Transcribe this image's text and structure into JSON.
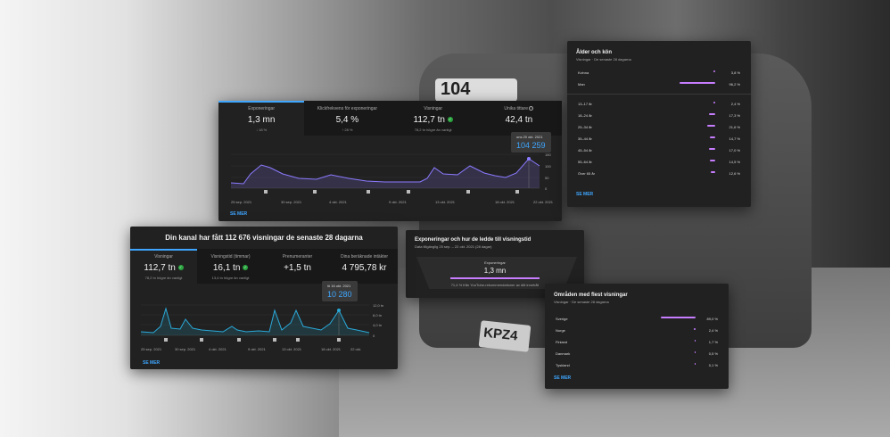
{
  "top_panel": {
    "metrics": [
      {
        "label": "Exponeringar",
        "value": "1,3 mn",
        "sub": "↓ 18 %"
      },
      {
        "label": "Klickfrekvens för exponeringar",
        "value": "5,4 %",
        "sub": "↑ 28 %"
      },
      {
        "label": "Visningar",
        "value": "112,7 tn",
        "sub": "78,2 tn högre än vanligt"
      },
      {
        "label": "Unika tittare",
        "value": "42,4 tn",
        "sub": ""
      }
    ],
    "tooltip": {
      "date": "ons 20 okt. 2021",
      "value": "104 259"
    },
    "x_labels": [
      "25 sep. 2021",
      "30 sep. 2021",
      "4 okt. 2021",
      "9 okt. 2021",
      "13 okt. 2021",
      "18 okt. 2021",
      "22 okt. 2021"
    ],
    "y_labels": [
      "150",
      "100",
      "50",
      "0"
    ],
    "see_more": "SE MER"
  },
  "main_panel": {
    "title": "Din kanal har fått 112 676 visningar de senaste 28 dagarna",
    "metrics": [
      {
        "label": "Visningar",
        "value": "112,7 tn",
        "sub": "78,2 tn högre än vanligt"
      },
      {
        "label": "Visningstid (timmar)",
        "value": "16,1 tn",
        "sub": "13,4 tn högre än vanligt"
      },
      {
        "label": "Prenumeranter",
        "value": "+1,5 tn",
        "sub": ""
      },
      {
        "label": "Dina beräknade intäkter",
        "value": "4 795,78 kr",
        "sub": ""
      }
    ],
    "tooltip": {
      "date": "lö 16 okt. 2021",
      "value": "10 280"
    },
    "x_labels": [
      "25 sep. 2021",
      "30 sep. 2021",
      "4 okt. 2021",
      "9 okt. 2021",
      "13 okt. 2021",
      "18 okt. 2021",
      "22 okt."
    ],
    "y_labels": [
      "12,0 tn",
      "8,0 tn",
      "4,0 tn",
      "0"
    ],
    "see_more": "SE MER"
  },
  "funnel_panel": {
    "title": "Exponeringar och hur de ledde till visningstid",
    "subtitle": "Data tillgänglig 25 sep. – 22 okt. 2021 (28 dagar)",
    "metric_label": "Exponeringar",
    "metric_value": "1,3 mn",
    "note": "71,4 % från YouTube-rekommendationer av ditt innehåll"
  },
  "age_panel": {
    "title": "Ålder och kön",
    "subtitle": "Visningar · De senaste 28 dagarna",
    "gender": [
      {
        "name": "Kvinna",
        "pct": "3,8 %",
        "v": 3.8
      },
      {
        "name": "Man",
        "pct": "96,2 %",
        "v": 96.2
      }
    ],
    "ages": [
      {
        "name": "13–17 år",
        "pct": "2,4 %",
        "v": 2.4
      },
      {
        "name": "18–24 år",
        "pct": "17,3 %",
        "v": 17.3
      },
      {
        "name": "25–34 år",
        "pct": "21,6 %",
        "v": 21.6
      },
      {
        "name": "35–44 år",
        "pct": "14,7 %",
        "v": 14.7
      },
      {
        "name": "45–54 år",
        "pct": "17,0 %",
        "v": 17.0
      },
      {
        "name": "55–64 år",
        "pct": "14,5 %",
        "v": 14.5
      },
      {
        "name": "Över 65 år",
        "pct": "12,6 %",
        "v": 12.6
      }
    ],
    "see_more": "SE MER"
  },
  "regions_panel": {
    "title": "Områden med flest visningar",
    "subtitle": "Visningar · De senaste 28 dagarna",
    "rows": [
      {
        "name": "Sverige",
        "pct": "89,0 %",
        "v": 89.0
      },
      {
        "name": "Norge",
        "pct": "2,4 %",
        "v": 2.4
      },
      {
        "name": "Finland",
        "pct": "1,7 %",
        "v": 1.7
      },
      {
        "name": "Danmark",
        "pct": "0,5 %",
        "v": 0.5
      },
      {
        "name": "Tyskland",
        "pct": "0,1 %",
        "v": 0.1
      }
    ],
    "see_more": "SE MER"
  },
  "background": {
    "plate_front": "104",
    "plate_rear": "KPZ4"
  }
}
